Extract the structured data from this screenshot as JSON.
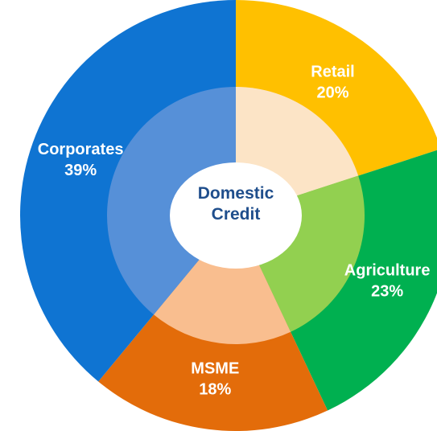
{
  "chart_data": {
    "type": "donut",
    "title": "Domestic Credit",
    "categories": [
      "Retail",
      "Agriculture",
      "MSME",
      "Corporates"
    ],
    "values": [
      20,
      23,
      18,
      39
    ],
    "value_labels": [
      "20%",
      "23%",
      "18%",
      "39%"
    ],
    "colors": [
      "#FFC000",
      "#00B050",
      "#E36C0A",
      "#0F74D2"
    ],
    "inner_colors": [
      "#FCE4C6",
      "#92D050",
      "#F9BE8F",
      "#5690D8"
    ]
  }
}
